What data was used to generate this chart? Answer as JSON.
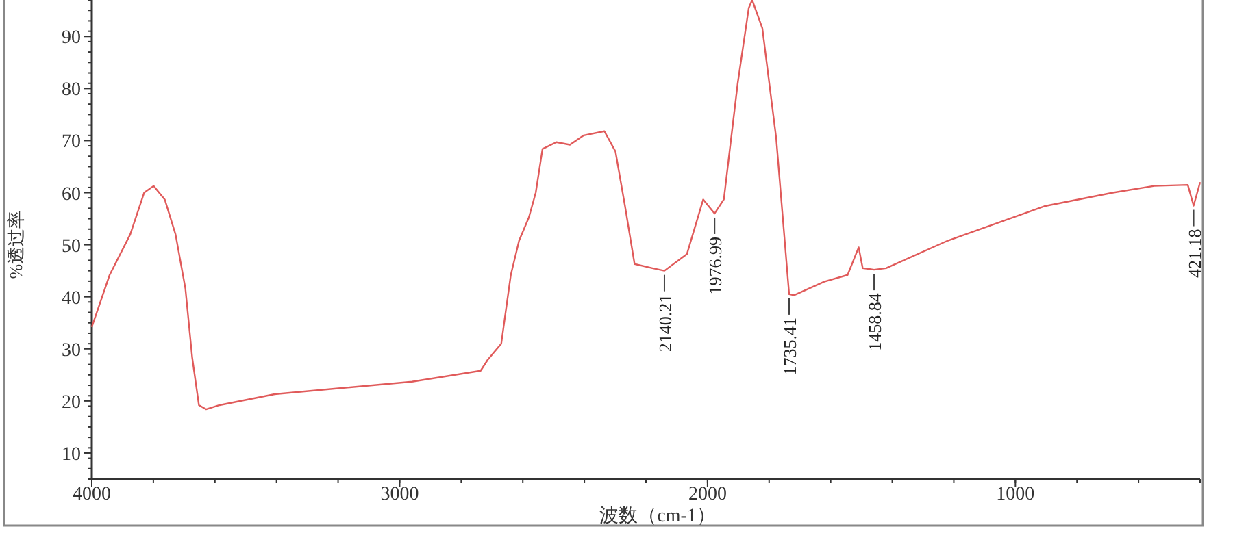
{
  "chart_data": {
    "type": "line",
    "xlabel": "波数（cm-1）",
    "ylabel": "%透过率",
    "xlim": [
      4000,
      400
    ],
    "ylim": [
      5,
      97
    ],
    "xticks": [
      4000,
      3000,
      2000,
      1000
    ],
    "yticks": [
      10,
      20,
      30,
      40,
      50,
      60,
      70,
      80,
      90
    ],
    "grid": false,
    "series": [
      {
        "color": "#e05a5a",
        "x": [
          4000,
          3942,
          3875,
          3830,
          3799,
          3763,
          3728,
          3696,
          3674,
          3652,
          3629,
          3585,
          3406,
          2960,
          2737,
          2714,
          2670,
          2639,
          2612,
          2580,
          2558,
          2536,
          2491,
          2447,
          2402,
          2335,
          2299,
          2268,
          2237,
          2179,
          2140,
          2067,
          2014,
          1977,
          1947,
          1902,
          1866,
          1855,
          1822,
          1777,
          1735,
          1719,
          1621,
          1545,
          1509,
          1496,
          1459,
          1420,
          1219,
          906,
          683,
          549,
          440,
          421,
          400
        ],
        "values": [
          34.2,
          44.2,
          52,
          60,
          61.3,
          58.7,
          52,
          41.6,
          28.4,
          19.2,
          18.4,
          19.2,
          21.3,
          23.7,
          25.8,
          27.9,
          31,
          44.2,
          50.8,
          55.3,
          60,
          68.4,
          69.7,
          69.2,
          71,
          71.8,
          67.9,
          57.4,
          46.3,
          45.5,
          45,
          48.2,
          58.7,
          56,
          58.7,
          81,
          95.5,
          97,
          91.6,
          70.5,
          40.5,
          40.3,
          42.9,
          44.2,
          49.5,
          45.5,
          45.2,
          45.5,
          50.8,
          57.4,
          60,
          61.3,
          61.5,
          57.5,
          62
        ]
      }
    ],
    "annotations": [
      {
        "text": "2140.21",
        "x": 2140,
        "y": 45
      },
      {
        "text": "1976.99",
        "x": 1977,
        "y": 56
      },
      {
        "text": "1735.41",
        "x": 1735,
        "y": 40.5
      },
      {
        "text": "1458.84",
        "x": 1459,
        "y": 45.2
      },
      {
        "text": "421.18",
        "x": 421,
        "y": 57.5
      }
    ]
  }
}
